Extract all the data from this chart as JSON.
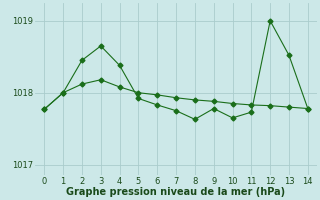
{
  "x": [
    0,
    1,
    2,
    3,
    4,
    5,
    6,
    7,
    8,
    9,
    10,
    11,
    12,
    13,
    14
  ],
  "line1": [
    1017.77,
    1018.0,
    1018.12,
    1018.18,
    1018.08,
    1018.0,
    1017.97,
    1017.93,
    1017.9,
    1017.88,
    1017.85,
    1017.83,
    1017.82,
    1017.8,
    1017.78
  ],
  "line2": [
    1017.77,
    1018.0,
    1018.45,
    1018.65,
    1018.38,
    1017.92,
    1017.83,
    1017.75,
    1017.63,
    1017.78,
    1017.65,
    1017.73,
    1019.0,
    1018.52,
    1017.78
  ],
  "ylim": [
    1016.85,
    1019.25
  ],
  "yticks": [
    1017,
    1018,
    1019
  ],
  "xticks": [
    0,
    1,
    2,
    3,
    4,
    5,
    6,
    7,
    8,
    9,
    10,
    11,
    12,
    13,
    14
  ],
  "line_color": "#1a6e1a",
  "bg_color": "#cce8e8",
  "grid_color": "#aacccc",
  "xlabel": "Graphe pression niveau de la mer (hPa)",
  "xlabel_fontsize": 7,
  "tick_fontsize": 6,
  "marker": "D",
  "marker_size": 2.5,
  "linewidth": 0.8
}
